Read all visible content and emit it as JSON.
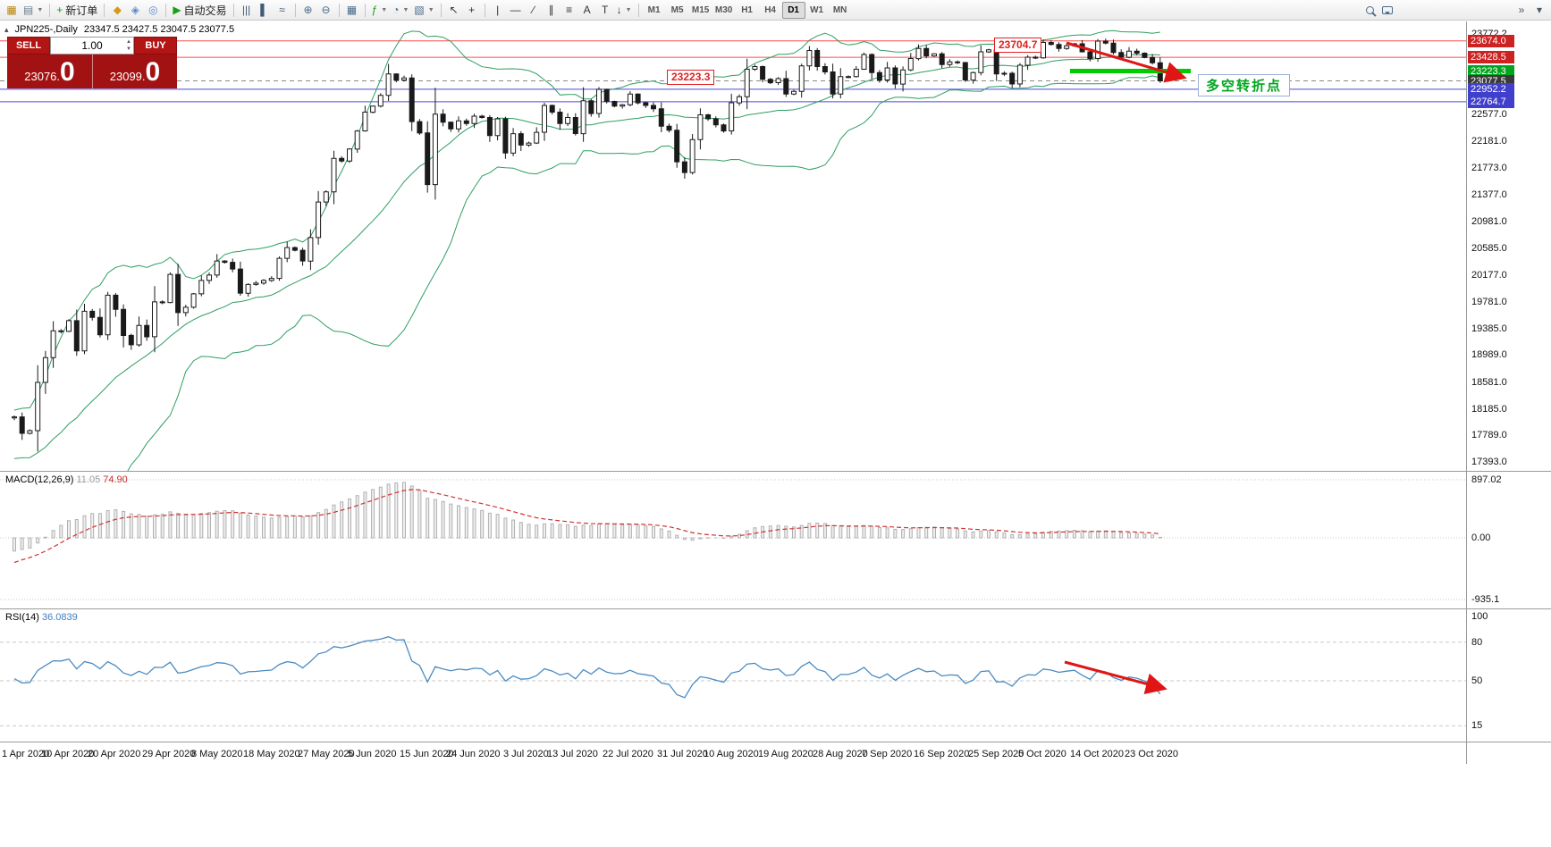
{
  "window": {
    "symbol": "JPN225-,Daily",
    "ohlc": "23347.5 23427.5 23047.5 23077.5",
    "collapse_glyph": "▴"
  },
  "colors": {
    "band": "#2f9e63",
    "candle": "#1a1a1a",
    "red_line": "#ff4d4d",
    "blue_line": "#4949d6",
    "green_highlight": "#00cc00",
    "macd_hist_stroke": "#b0b0b0",
    "macd_hist_fill": "#efefef",
    "macd_signal": "#d23333",
    "rsi_line": "#4a8bc2",
    "arrow": "#e01515"
  },
  "toolbar": {
    "active_timeframe": "D1",
    "overflow_glyph": "»",
    "options_glyph": "▾",
    "items": [
      {
        "type": "btn",
        "name": "new-chart-button",
        "icon": "new-chart-icon",
        "glyph": "▦",
        "color": "#b8860b"
      },
      {
        "type": "btn",
        "name": "profiles-button",
        "icon": "profiles-icon",
        "glyph": "▤",
        "color": "#6b7f93",
        "caret": true
      },
      {
        "type": "sep"
      },
      {
        "type": "btn",
        "name": "new-order-button",
        "icon": "new-order-icon",
        "glyph": "+",
        "color": "#18a018",
        "label": "新订单"
      },
      {
        "type": "sep"
      },
      {
        "type": "btn",
        "name": "market-watch-button",
        "icon": "market-watch-icon",
        "glyph": "◆",
        "color": "#d49a1a"
      },
      {
        "type": "btn",
        "name": "data-window-button",
        "icon": "data-window-icon",
        "glyph": "◈",
        "color": "#5b8bd0"
      },
      {
        "type": "btn",
        "name": "navigator-button",
        "icon": "navigator-icon",
        "glyph": "◎",
        "color": "#5b8bd0"
      },
      {
        "type": "sep"
      },
      {
        "type": "btn",
        "name": "autotrade-button",
        "icon": "autotrade-icon",
        "glyph": "▶",
        "color": "#18a018",
        "label": "自动交易"
      },
      {
        "type": "sep"
      },
      {
        "type": "btn",
        "name": "bar-chart-button",
        "icon": "bar-chart-icon",
        "glyph": "|||",
        "color": "#3e5a76"
      },
      {
        "type": "btn",
        "name": "candlestick-chart-button",
        "icon": "candlestick-icon",
        "glyph": "▌",
        "color": "#3e5a76"
      },
      {
        "type": "btn",
        "name": "line-chart-button",
        "icon": "line-chart-icon",
        "glyph": "≈",
        "color": "#3e5a76"
      },
      {
        "type": "sep"
      },
      {
        "type": "btn",
        "name": "zoom-in-button",
        "icon": "zoom-in-icon",
        "glyph": "⊕",
        "color": "#4a6b8a"
      },
      {
        "type": "btn",
        "name": "zoom-out-button",
        "icon": "zoom-out-icon",
        "glyph": "⊖",
        "color": "#4a6b8a"
      },
      {
        "type": "sep"
      },
      {
        "type": "btn",
        "name": "tile-windows-button",
        "icon": "tile-windows-icon",
        "glyph": "▦",
        "color": "#4a6b8a"
      },
      {
        "type": "sep"
      },
      {
        "type": "btn",
        "name": "add-indicator-button",
        "icon": "add-indicator-icon",
        "glyph": "ƒ",
        "color": "#18a018",
        "caret": true
      },
      {
        "type": "btn",
        "name": "periods-button",
        "icon": "periods-clock-icon",
        "glyph": "◔",
        "color": "#4a6b8a",
        "caret": true
      },
      {
        "type": "btn",
        "name": "templates-button",
        "icon": "template-icon",
        "glyph": "▧",
        "color": "#4a6b8a",
        "caret": true
      },
      {
        "type": "sep"
      },
      {
        "type": "btn",
        "name": "cursor-button",
        "icon": "cursor-icon",
        "glyph": "↖",
        "color": "#333333"
      },
      {
        "type": "btn",
        "name": "crosshair-button",
        "icon": "crosshair-icon",
        "glyph": "+",
        "color": "#333333"
      },
      {
        "type": "sep"
      },
      {
        "type": "btn",
        "name": "vertical-line-button",
        "icon": "vertical-line-icon",
        "glyph": "|",
        "color": "#333333"
      },
      {
        "type": "btn",
        "name": "horizontal-line-button",
        "icon": "horizontal-line-icon",
        "glyph": "—",
        "color": "#333333"
      },
      {
        "type": "btn",
        "name": "trendline-button",
        "icon": "trendline-icon",
        "glyph": "∕",
        "color": "#333333"
      },
      {
        "type": "btn",
        "name": "channel-button",
        "icon": "channel-icon",
        "glyph": "∥",
        "color": "#333333"
      },
      {
        "type": "btn",
        "name": "fibonacci-button",
        "icon": "fibonacci-icon",
        "glyph": "≡",
        "color": "#333333"
      },
      {
        "type": "btn",
        "name": "text-button",
        "icon": "text-icon",
        "glyph": "A",
        "color": "#333333"
      },
      {
        "type": "btn",
        "name": "label-button",
        "icon": "label-icon",
        "glyph": "T",
        "color": "#333333"
      },
      {
        "type": "btn",
        "name": "arrows-button",
        "icon": "arrow-tools-icon",
        "glyph": "↓",
        "color": "#333333",
        "caret": true
      },
      {
        "type": "sep"
      },
      {
        "type": "tf",
        "name": "timeframe-m1-button",
        "label": "M1"
      },
      {
        "type": "tf",
        "name": "timeframe-m5-button",
        "label": "M5"
      },
      {
        "type": "tf",
        "name": "timeframe-m15-button",
        "label": "M15"
      },
      {
        "type": "tf",
        "name": "timeframe-m30-button",
        "label": "M30"
      },
      {
        "type": "tf",
        "name": "timeframe-h1-button",
        "label": "H1"
      },
      {
        "type": "tf",
        "name": "timeframe-h4-button",
        "label": "H4"
      },
      {
        "type": "tf",
        "name": "timeframe-d1-button",
        "label": "D1"
      },
      {
        "type": "tf",
        "name": "timeframe-w1-button",
        "label": "W1"
      },
      {
        "type": "tf",
        "name": "timeframe-mn-button",
        "label": "MN"
      }
    ]
  },
  "trade_panel": {
    "sell_label": "SELL",
    "buy_label": "BUY",
    "volume": "1.00",
    "up_glyph": "▲",
    "down_glyph": "▼",
    "sell_price_small": "23076.",
    "sell_price_big": "0",
    "buy_price_small": "23099.",
    "buy_price_big": "0"
  },
  "chart": {
    "type": "candlestick",
    "annotations": {
      "note1": "23704.7",
      "note2": "23223.3",
      "turning_point": "多空转折点"
    },
    "price_axis_labels": [
      "23772.2",
      "22577.0",
      "22181.0",
      "21773.0",
      "21377.0",
      "20981.0",
      "20585.0",
      "20177.0",
      "19781.0",
      "19385.0",
      "18989.0",
      "18581.0",
      "18185.0",
      "17789.0",
      "17393.0"
    ],
    "tags": [
      {
        "name": "tag-23674",
        "text": "23674.0",
        "price": 23674.0,
        "bg": "#cc2222"
      },
      {
        "name": "tag-23428",
        "text": "23428.5",
        "price": 23428.5,
        "bg": "#cc2222"
      },
      {
        "name": "tag-23223",
        "text": "23223.3",
        "price": 23223.3,
        "bg": "#00a51e"
      },
      {
        "name": "tag-23077",
        "text": "23077.5",
        "price": 23077.5,
        "bg": "#3a3a3a"
      },
      {
        "name": "tag-22952",
        "text": "22952.2",
        "price": 22952.2,
        "bg": "#4040cc"
      },
      {
        "name": "tag-22764",
        "text": "22764.7",
        "price": 22764.7,
        "bg": "#4040cc"
      }
    ],
    "hlines": [
      {
        "price": 23674.0,
        "color": "#ff4d4d",
        "w": 1
      },
      {
        "price": 23428.5,
        "color": "#ff4d4d",
        "w": 1
      },
      {
        "price": 22952.2,
        "color": "#4949d6",
        "w": 1
      },
      {
        "price": 22764.7,
        "color": "#4949d6",
        "w": 1
      },
      {
        "price": 23077.5,
        "color": "#888888",
        "w": 1,
        "dash": "5,4"
      }
    ],
    "green_line": {
      "price": 23223.3
    },
    "last_ohlc": [
      23347.5,
      23427.5,
      23047.5,
      23077.5
    ],
    "prehistory": [
      19800,
      19600,
      19900,
      19300,
      19600,
      18900,
      19200,
      18500,
      18800,
      18100,
      18300,
      17600,
      17800,
      17100,
      17300,
      16900,
      17400,
      16950,
      17250,
      16900,
      17300,
      17050,
      17500,
      17250,
      17600,
      17400,
      17800,
      17700,
      17950,
      18050
    ],
    "closes": [
      18065,
      17820,
      17860,
      18580,
      18950,
      19350,
      19340,
      19500,
      19050,
      19640,
      19550,
      19290,
      19880,
      19670,
      19280,
      19140,
      19430,
      19260,
      19780,
      19770,
      20190,
      19620,
      19700,
      19900,
      20100,
      20180,
      20390,
      20370,
      20270,
      19910,
      20040,
      20060,
      20100,
      20130,
      20430,
      20590,
      20550,
      20390,
      20740,
      21270,
      21420,
      21920,
      21880,
      22060,
      22330,
      22610,
      22700,
      22860,
      23180,
      23090,
      23120,
      22470,
      22300,
      21530,
      22580,
      22460,
      22360,
      22480,
      22440,
      22550,
      22530,
      22260,
      22510,
      22000,
      22290,
      22120,
      22150,
      22310,
      22710,
      22610,
      22440,
      22530,
      22290,
      22780,
      22590,
      22950,
      22770,
      22700,
      22720,
      22880,
      22750,
      22710,
      22660,
      22400,
      22340,
      21870,
      21710,
      22200,
      22570,
      22510,
      22420,
      22330,
      22750,
      22840,
      23250,
      23290,
      23100,
      23050,
      23110,
      22880,
      22920,
      23300,
      23530,
      23290,
      23210,
      22880,
      23140,
      23140,
      23250,
      23470,
      23200,
      23090,
      23270,
      23030,
      23240,
      23410,
      23560,
      23450,
      23480,
      23320,
      23360,
      23350,
      23090,
      23200,
      23510,
      23540,
      23180,
      23190,
      23030,
      23310,
      23430,
      23420,
      23650,
      23620,
      23560,
      23600,
      23630,
      23510,
      23410,
      23670,
      23640,
      23500,
      23430,
      23520,
      23490,
      23425,
      23347.5,
      23077.5
    ],
    "date_ticks": [
      {
        "label": "1 Apr 2020",
        "bar": 0
      },
      {
        "label": "10 Apr 2020",
        "bar": 7
      },
      {
        "label": "20 Apr 2020",
        "bar": 13
      },
      {
        "label": "29 Apr 2020",
        "bar": 20
      },
      {
        "label": "8 May 2020",
        "bar": 26
      },
      {
        "label": "18 May 2020",
        "bar": 33
      },
      {
        "label": "27 May 2020",
        "bar": 40
      },
      {
        "label": "5 Jun 2020",
        "bar": 46
      },
      {
        "label": "15 Jun 2020",
        "bar": 53
      },
      {
        "label": "24 Jun 2020",
        "bar": 59
      },
      {
        "label": "3 Jul 2020",
        "bar": 66
      },
      {
        "label": "13 Jul 2020",
        "bar": 72
      },
      {
        "label": "22 Jul 2020",
        "bar": 79
      },
      {
        "label": "31 Jul 2020",
        "bar": 86
      },
      {
        "label": "10 Aug 2020",
        "bar": 92
      },
      {
        "label": "19 Aug 2020",
        "bar": 99
      },
      {
        "label": "28 Aug 2020",
        "bar": 106
      },
      {
        "label": "7 Sep 2020",
        "bar": 112
      },
      {
        "label": "16 Sep 2020",
        "bar": 119
      },
      {
        "label": "25 Sep 2020",
        "bar": 126
      },
      {
        "label": "5 Oct 2020",
        "bar": 132
      },
      {
        "label": "14 Oct 2020",
        "bar": 139
      },
      {
        "label": "23 Oct 2020",
        "bar": 146
      }
    ]
  },
  "macd": {
    "title": "MACD(12,26,9)",
    "value_main": "11.05",
    "value_signal": "74.90",
    "axis": [
      "897.02",
      "0.00",
      "-935.1"
    ]
  },
  "rsi": {
    "title": "RSI(14)",
    "value": "36.0839",
    "axis": [
      "100",
      "80",
      "50",
      "15"
    ]
  }
}
